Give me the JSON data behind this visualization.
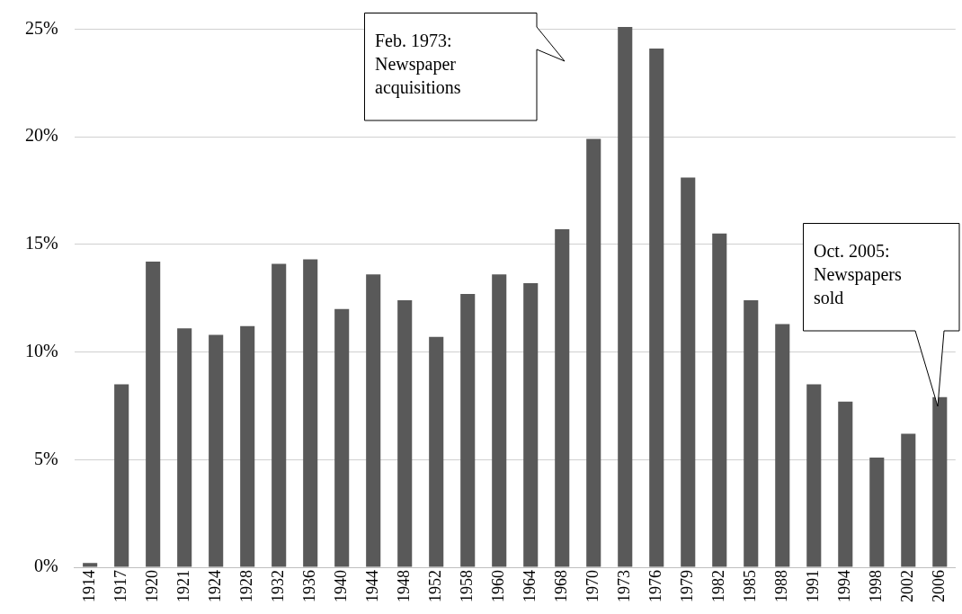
{
  "chart_data": {
    "type": "bar",
    "categories": [
      "1914",
      "1917",
      "1920",
      "1921",
      "1924",
      "1928",
      "1932",
      "1936",
      "1940",
      "1944",
      "1948",
      "1952",
      "1958",
      "1960",
      "1964",
      "1968",
      "1970",
      "1973",
      "1976",
      "1979",
      "1982",
      "1985",
      "1988",
      "1991",
      "1994",
      "1998",
      "2002",
      "2006"
    ],
    "values": [
      0.2,
      8.5,
      14.2,
      11.1,
      10.8,
      11.2,
      14.1,
      14.3,
      12.0,
      13.6,
      12.4,
      10.7,
      12.7,
      13.6,
      13.2,
      15.7,
      19.9,
      25.1,
      24.1,
      18.1,
      15.5,
      12.4,
      11.3,
      8.5,
      7.7,
      5.1,
      6.2,
      7.9
    ],
    "color": "#595959",
    "ylim": [
      0,
      25.1
    ],
    "yticks": [
      {
        "value": 0,
        "label": "0%"
      },
      {
        "value": 5,
        "label": "5%"
      },
      {
        "value": 10,
        "label": "10%"
      },
      {
        "value": 15,
        "label": "15%"
      },
      {
        "value": 20,
        "label": "20%"
      },
      {
        "value": 25,
        "label": "25%"
      }
    ],
    "grid": "y",
    "legend": false,
    "annotations": [
      "Feb. 1973: Newspaper acquisitions",
      "Oct. 2005: Newspapers sold"
    ]
  }
}
